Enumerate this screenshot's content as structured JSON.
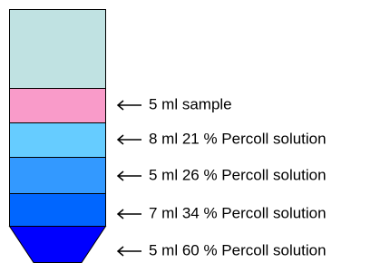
{
  "layers": [
    {
      "label": "5 ml sample"
    },
    {
      "label": "8 ml 21 % Percoll solution"
    },
    {
      "label": "5 ml 26 % Percoll solution"
    },
    {
      "label": "7 ml 34 % Percoll solution"
    },
    {
      "label": "5 ml 60 % Percoll solution"
    }
  ]
}
